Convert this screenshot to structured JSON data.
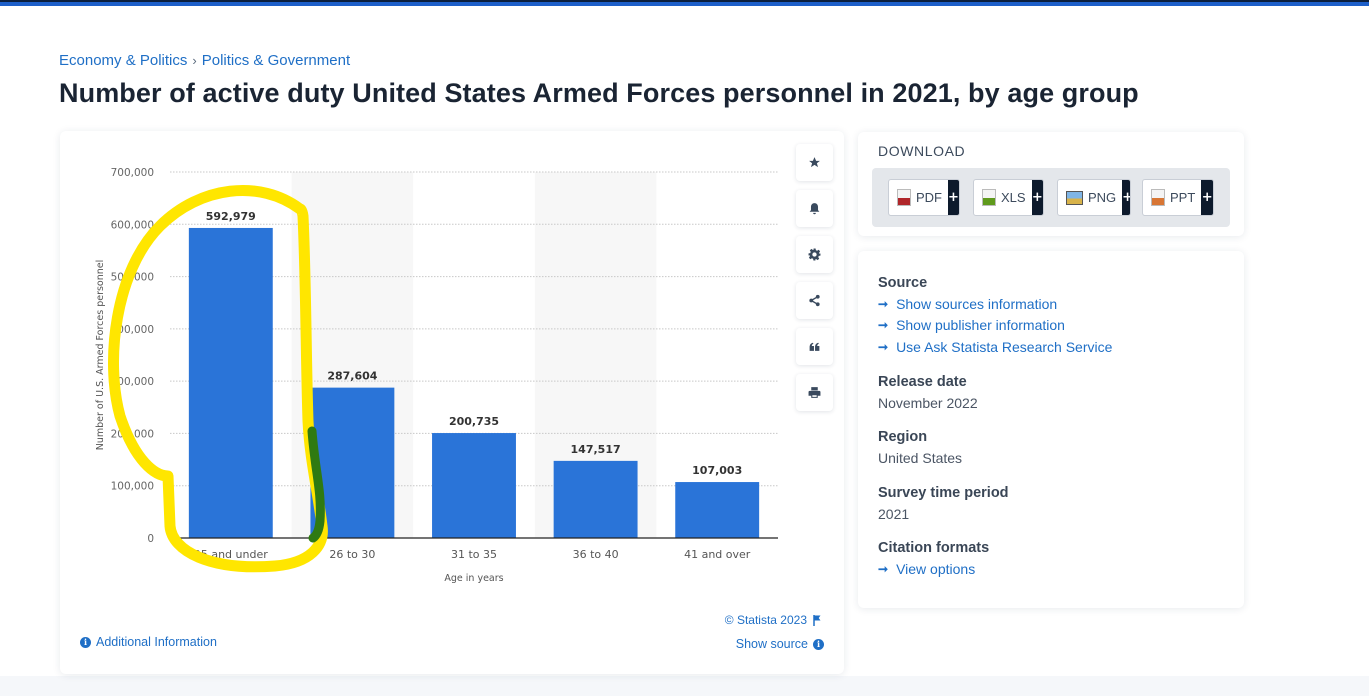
{
  "breadcrumb": [
    {
      "label": "Economy & Politics"
    },
    {
      "label": "Politics & Government"
    }
  ],
  "breadcrumb_separator": "›",
  "page_title": "Number of active duty United States Armed Forces personnel in 2021, by age group",
  "toolbar": [
    {
      "name": "favorite",
      "icon": "star-icon"
    },
    {
      "name": "notification",
      "icon": "bell-icon"
    },
    {
      "name": "settings",
      "icon": "gear-icon"
    },
    {
      "name": "share",
      "icon": "share-icon"
    },
    {
      "name": "cite",
      "icon": "quote-icon"
    },
    {
      "name": "print",
      "icon": "print-icon"
    }
  ],
  "chart_data": {
    "type": "bar",
    "title": "Number of active duty United States Armed Forces personnel in 2021, by age group",
    "categories": [
      "25 and under",
      "26 to 30",
      "31 to 35",
      "36 to 40",
      "41 and over"
    ],
    "values": [
      592979,
      287604,
      200735,
      147517,
      107003
    ],
    "data_labels": [
      "592,979",
      "287,604",
      "200,735",
      "147,517",
      "107,003"
    ],
    "xlabel": "Age in years",
    "ylabel": "Number of U.S. Armed Forces personnel",
    "ylim": [
      0,
      700000
    ],
    "yticks": [
      0,
      100000,
      200000,
      300000,
      400000,
      500000,
      600000,
      700000
    ],
    "ytick_labels": [
      "0",
      "100,000",
      "200,000",
      "300,000",
      "400,000",
      "500,000",
      "600,000",
      "700,000"
    ],
    "grid": true,
    "bar_color": "#2a74d8",
    "annotation": {
      "type": "freehand-highlight",
      "target": "25 and under",
      "color": "#ffe600"
    }
  },
  "chart_footer": {
    "additional_info": "Additional Information",
    "copyright": "© Statista 2023",
    "show_source": "Show source"
  },
  "download": {
    "title": "DOWNLOAD",
    "formats": [
      {
        "label": "PDF",
        "color": "#b0262a"
      },
      {
        "label": "XLS",
        "color": "#5f9a1c"
      },
      {
        "label": "PNG",
        "color": "#3b7ad1"
      },
      {
        "label": "PPT",
        "color": "#d87635"
      }
    ],
    "plus": "+"
  },
  "info": {
    "source_heading": "Source",
    "source_links": [
      "Show sources information",
      "Show publisher information",
      "Use Ask Statista Research Service"
    ],
    "release_heading": "Release date",
    "release_value": "November 2022",
    "region_heading": "Region",
    "region_value": "United States",
    "survey_heading": "Survey time period",
    "survey_value": "2021",
    "citation_heading": "Citation formats",
    "citation_link": "View options",
    "arrow": "➞"
  },
  "colors": {
    "accent": "#1f6fc6",
    "topbar": "#1d5fc9"
  }
}
